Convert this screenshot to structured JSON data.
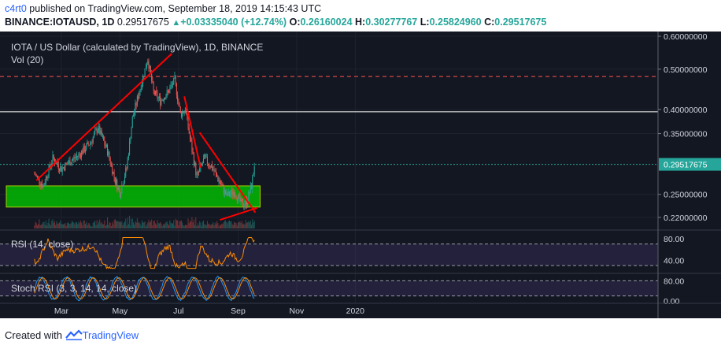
{
  "header": {
    "publisher": "c4rt0",
    "published_text": "published on TradingView.com, September 18, 2019 14:15:43 UTC",
    "symbol": "BINANCE:IOTAUSD, 1D",
    "last": "0.29517675",
    "change": "+0.03335040 (+12.74%)",
    "o_label": "O:",
    "o_value": "0.26160024",
    "h_label": "H:",
    "h_value": "0.30277767",
    "l_label": "L:",
    "l_value": "0.25824960",
    "c_label": "C:",
    "c_value": "0.29517675"
  },
  "legend": {
    "title": "IOTA / US Dollar (calculated by TradingView), 1D, BINANCE",
    "volume": "Vol (20)"
  },
  "rsi": {
    "label": "RSI (14, close)",
    "ticks": [
      "80.00",
      "40.00"
    ]
  },
  "stoch": {
    "label": "Stoch RSI (3, 3, 14, 14, close)",
    "ticks": [
      "80.00",
      "0.00"
    ]
  },
  "colors": {
    "up": "#26a69a",
    "down": "#ef5350",
    "background": "#131722",
    "trendline": "#ff0000",
    "zone": "#00c800",
    "rsi": "#ff8c00",
    "stoch_k": "#2196f3",
    "stoch_d": "#ff8c00",
    "band": "#7e57c2"
  },
  "chart_data": {
    "type": "candlestick",
    "symbol": "BINANCE:IOTAUSD",
    "interval": "1D",
    "x_labels": [
      "Mar",
      "May",
      "Jul",
      "Sep",
      "Nov",
      "2020"
    ],
    "y_axis_scale": "log",
    "y_ticks": [
      "0.60000000",
      "0.50000000",
      "0.40000000",
      "0.35000000",
      "0.25000000",
      "0.22000000"
    ],
    "last_price_label": "0.29517675",
    "price_path": [
      {
        "date": "2019-02-01",
        "price": 0.28
      },
      {
        "date": "2019-02-10",
        "price": 0.262
      },
      {
        "date": "2019-02-20",
        "price": 0.305
      },
      {
        "date": "2019-03-01",
        "price": 0.288
      },
      {
        "date": "2019-03-10",
        "price": 0.3
      },
      {
        "date": "2019-03-20",
        "price": 0.312
      },
      {
        "date": "2019-04-01",
        "price": 0.335
      },
      {
        "date": "2019-04-08",
        "price": 0.362
      },
      {
        "date": "2019-04-18",
        "price": 0.318
      },
      {
        "date": "2019-04-26",
        "price": 0.27
      },
      {
        "date": "2019-05-01",
        "price": 0.252
      },
      {
        "date": "2019-05-08",
        "price": 0.29
      },
      {
        "date": "2019-05-14",
        "price": 0.38
      },
      {
        "date": "2019-05-22",
        "price": 0.45
      },
      {
        "date": "2019-05-30",
        "price": 0.53
      },
      {
        "date": "2019-06-05",
        "price": 0.44
      },
      {
        "date": "2019-06-12",
        "price": 0.42
      },
      {
        "date": "2019-06-20",
        "price": 0.44
      },
      {
        "date": "2019-06-27",
        "price": 0.47
      },
      {
        "date": "2019-07-03",
        "price": 0.39
      },
      {
        "date": "2019-07-08",
        "price": 0.4
      },
      {
        "date": "2019-07-14",
        "price": 0.33
      },
      {
        "date": "2019-07-20",
        "price": 0.275
      },
      {
        "date": "2019-07-28",
        "price": 0.305
      },
      {
        "date": "2019-08-05",
        "price": 0.29
      },
      {
        "date": "2019-08-12",
        "price": 0.27
      },
      {
        "date": "2019-08-20",
        "price": 0.248
      },
      {
        "date": "2019-08-28",
        "price": 0.254
      },
      {
        "date": "2019-09-05",
        "price": 0.236
      },
      {
        "date": "2019-09-10",
        "price": 0.24
      },
      {
        "date": "2019-09-15",
        "price": 0.262
      },
      {
        "date": "2019-09-18",
        "price": 0.295
      }
    ],
    "horizontal_lines": [
      {
        "price": 0.48,
        "style": "dashed",
        "color": "#ff5252"
      },
      {
        "price": 0.395,
        "style": "solid",
        "color": "#ffffff"
      },
      {
        "price": 0.29517675,
        "style": "dotted",
        "color": "#26a69a"
      }
    ],
    "support_zone": {
      "from": 0.233,
      "to": 0.262
    },
    "trendlines": [
      {
        "from": {
          "date": "2019-02-03",
          "price": 0.27
        },
        "to": {
          "date": "2019-06-24",
          "price": 0.545
        }
      },
      {
        "from": {
          "date": "2019-07-07",
          "price": 0.43
        },
        "to": {
          "date": "2019-07-24",
          "price": 0.29
        }
      },
      {
        "from": {
          "date": "2019-07-23",
          "price": 0.352
        },
        "to": {
          "date": "2019-09-19",
          "price": 0.226
        }
      },
      {
        "from": {
          "date": "2019-08-13",
          "price": 0.217
        },
        "to": {
          "date": "2019-09-21",
          "price": 0.232
        }
      }
    ],
    "rsi_levels": [
      70,
      30
    ],
    "stoch_levels": [
      80,
      20
    ]
  }
}
